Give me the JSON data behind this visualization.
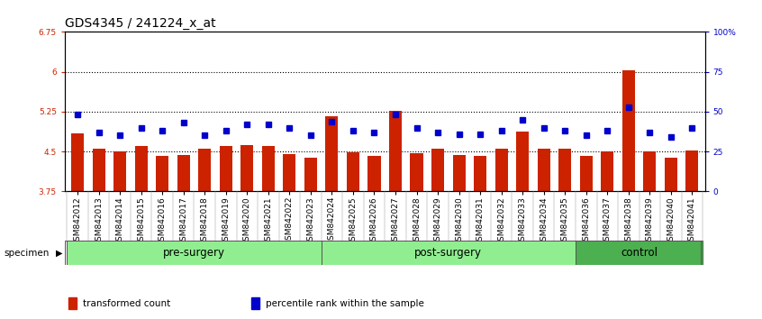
{
  "title": "GDS4345 / 241224_x_at",
  "samples": [
    "GSM842012",
    "GSM842013",
    "GSM842014",
    "GSM842015",
    "GSM842016",
    "GSM842017",
    "GSM842018",
    "GSM842019",
    "GSM842020",
    "GSM842021",
    "GSM842022",
    "GSM842023",
    "GSM842024",
    "GSM842025",
    "GSM842026",
    "GSM842027",
    "GSM842028",
    "GSM842029",
    "GSM842030",
    "GSM842031",
    "GSM842032",
    "GSM842033",
    "GSM842034",
    "GSM842035",
    "GSM842036",
    "GSM842037",
    "GSM842038",
    "GSM842039",
    "GSM842040",
    "GSM842041"
  ],
  "red_values": [
    4.85,
    4.55,
    4.5,
    4.6,
    4.42,
    4.43,
    4.55,
    4.6,
    4.62,
    4.6,
    4.45,
    4.38,
    5.17,
    4.48,
    4.42,
    5.27,
    4.47,
    4.55,
    4.44,
    4.42,
    4.56,
    4.88,
    4.55,
    4.55,
    4.41,
    4.5,
    6.02,
    4.5,
    4.38,
    4.52
  ],
  "blue_values": [
    48,
    37,
    35,
    40,
    38,
    43,
    35,
    38,
    42,
    42,
    40,
    35,
    44,
    38,
    37,
    48,
    40,
    37,
    36,
    36,
    38,
    45,
    40,
    38,
    35,
    38,
    53,
    37,
    34,
    40
  ],
  "groups": [
    {
      "label": "pre-surgery",
      "start": 0,
      "end": 12,
      "color": "#90EE90"
    },
    {
      "label": "post-surgery",
      "start": 12,
      "end": 24,
      "color": "#90EE90"
    },
    {
      "label": "control",
      "start": 24,
      "end": 30,
      "color": "#4CAF50"
    }
  ],
  "ylim_left": [
    3.75,
    6.75
  ],
  "ylim_right": [
    0,
    100
  ],
  "yticks_left": [
    3.75,
    4.5,
    5.25,
    6.0,
    6.75
  ],
  "ytick_labels_left": [
    "3.75",
    "4.5",
    "5.25",
    "6",
    "6.75"
  ],
  "yticks_right": [
    0,
    25,
    50,
    75,
    100
  ],
  "ytick_labels_right": [
    "0",
    "25",
    "50",
    "75",
    "100%"
  ],
  "hlines": [
    4.5,
    5.25,
    6.0
  ],
  "bar_color": "#CC2200",
  "blue_color": "#0000CC",
  "bar_bottom": 3.75,
  "legend_items": [
    "transformed count",
    "percentile rank within the sample"
  ],
  "legend_colors": [
    "#CC2200",
    "#0000CC"
  ],
  "title_fontsize": 10,
  "tick_fontsize": 6.5,
  "group_label_fontsize": 8.5
}
